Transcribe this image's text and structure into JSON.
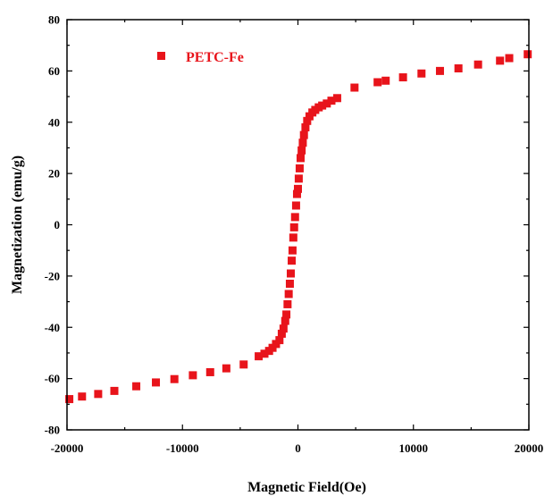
{
  "chart_data": {
    "type": "scatter",
    "xlabel": "Magnetic Field(Oe)",
    "ylabel": "Magnetization (emu/g)",
    "xlim": [
      -20000,
      20000
    ],
    "ylim": [
      -80,
      80
    ],
    "xticks": [
      "-20000",
      "-10000",
      "0",
      "10000",
      "20000"
    ],
    "yticks": [
      "-80",
      "-60",
      "-40",
      "-20",
      "0",
      "20",
      "40",
      "60",
      "80"
    ],
    "legend_position": "top-left",
    "marker": "square",
    "color": "#e8141b",
    "series": [
      {
        "name": "PETC-Fe",
        "points": [
          [
            -19800,
            -68
          ],
          [
            -18700,
            -67
          ],
          [
            -17300,
            -66
          ],
          [
            -15900,
            -64.8
          ],
          [
            -14000,
            -63
          ],
          [
            -12300,
            -61.5
          ],
          [
            -10700,
            -60.2
          ],
          [
            -9100,
            -58.7
          ],
          [
            -7600,
            -57.5
          ],
          [
            -6200,
            -56
          ],
          [
            -4700,
            -54.5
          ],
          [
            -3400,
            -51.3
          ],
          [
            -2900,
            -50.3
          ],
          [
            -2500,
            -49.2
          ],
          [
            -2200,
            -48
          ],
          [
            -1900,
            -46.5
          ],
          [
            -1600,
            -45
          ],
          [
            -1400,
            -42.5
          ],
          [
            -1250,
            -40.5
          ],
          [
            -1100,
            -37.5
          ],
          [
            -1000,
            -35
          ],
          [
            -900,
            -31
          ],
          [
            -800,
            -27
          ],
          [
            -700,
            -23
          ],
          [
            -620,
            -19
          ],
          [
            -540,
            -14
          ],
          [
            -470,
            -10
          ],
          [
            -400,
            -5
          ],
          [
            -330,
            -1
          ],
          [
            -250,
            3
          ],
          [
            -160,
            7.5
          ],
          [
            -80,
            12
          ],
          [
            0,
            14
          ],
          [
            70,
            18
          ],
          [
            150,
            22
          ],
          [
            230,
            26
          ],
          [
            320,
            29
          ],
          [
            420,
            32
          ],
          [
            520,
            35
          ],
          [
            650,
            38
          ],
          [
            800,
            40.5
          ],
          [
            1000,
            42.3
          ],
          [
            1250,
            43.8
          ],
          [
            1500,
            44.8
          ],
          [
            1800,
            45.8
          ],
          [
            2100,
            46.5
          ],
          [
            2500,
            47.3
          ],
          [
            2900,
            48.4
          ],
          [
            3400,
            49.4
          ],
          [
            4900,
            53.5
          ],
          [
            6900,
            55.6
          ],
          [
            7600,
            56.2
          ],
          [
            9100,
            57.5
          ],
          [
            10700,
            59
          ],
          [
            12300,
            60
          ],
          [
            13900,
            61
          ],
          [
            15600,
            62.5
          ],
          [
            17500,
            64
          ],
          [
            18300,
            65
          ],
          [
            19900,
            66.5
          ]
        ]
      }
    ]
  }
}
